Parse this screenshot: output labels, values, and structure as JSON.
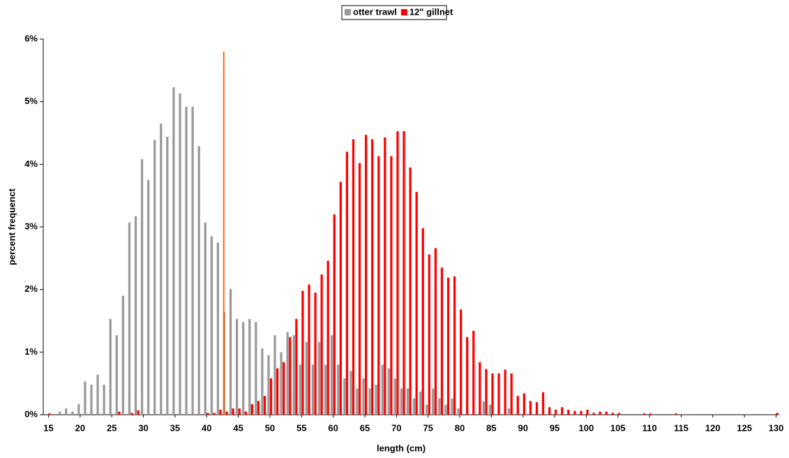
{
  "chart_data": {
    "type": "bar",
    "x_label": "length (cm)",
    "y_label": "percent frequenct",
    "x": [
      15,
      16,
      17,
      18,
      19,
      20,
      21,
      22,
      23,
      24,
      25,
      26,
      27,
      28,
      29,
      30,
      31,
      32,
      33,
      34,
      35,
      36,
      37,
      38,
      39,
      40,
      41,
      42,
      43,
      44,
      45,
      46,
      47,
      48,
      49,
      50,
      51,
      52,
      53,
      54,
      55,
      56,
      57,
      58,
      59,
      60,
      61,
      62,
      63,
      64,
      65,
      66,
      67,
      68,
      69,
      70,
      71,
      72,
      73,
      74,
      75,
      76,
      77,
      78,
      79,
      80,
      81,
      82,
      83,
      84,
      85,
      86,
      87,
      88,
      89,
      90,
      91,
      92,
      93,
      94,
      95,
      96,
      97,
      98,
      99,
      100,
      101,
      102,
      103,
      104,
      105,
      106,
      107,
      108,
      109,
      110,
      111,
      112,
      113,
      114,
      115,
      116,
      117,
      118,
      119,
      120,
      121,
      122,
      123,
      124,
      125,
      126,
      127,
      128,
      129,
      130
    ],
    "xlim": [
      14.5,
      130.5
    ],
    "xticks": [
      15,
      20,
      25,
      30,
      35,
      40,
      45,
      50,
      55,
      60,
      65,
      70,
      75,
      80,
      85,
      90,
      95,
      100,
      105,
      110,
      115,
      120,
      125,
      130
    ],
    "ylim": [
      0,
      6
    ],
    "yticks": [
      {
        "value": 0,
        "label": "0%"
      },
      {
        "value": 1,
        "label": "1%"
      },
      {
        "value": 2,
        "label": "2%"
      },
      {
        "value": 3,
        "label": "3%"
      },
      {
        "value": 4,
        "label": "4%"
      },
      {
        "value": 5,
        "label": "5%"
      },
      {
        "value": 6,
        "label": "6%"
      }
    ],
    "grid": false,
    "legend": "top",
    "series": [
      {
        "name": "otter trawl",
        "color": "#999999",
        "values": [
          0,
          0,
          0.05,
          0.1,
          0.05,
          0.17,
          0.53,
          0.48,
          0.64,
          0.48,
          1.53,
          1.27,
          1.9,
          3.07,
          3.17,
          4.08,
          3.75,
          4.39,
          4.65,
          4.44,
          5.23,
          5.13,
          4.92,
          4.92,
          4.29,
          3.07,
          2.85,
          2.75,
          1.64,
          2.01,
          1.53,
          1.48,
          1.53,
          1.48,
          1.06,
          0.95,
          1.27,
          1.0,
          1.32,
          1.27,
          0.8,
          1.16,
          0.8,
          1.16,
          0.8,
          1.27,
          0.8,
          0.58,
          0.7,
          0.42,
          0.58,
          0.42,
          0.48,
          0.8,
          0.74,
          0.58,
          0.42,
          0.42,
          0.26,
          0.37,
          0.16,
          0.42,
          0.26,
          0.16,
          0.26,
          0.1,
          0,
          0,
          0,
          0.21,
          0.16,
          0,
          0,
          0.1,
          0,
          0,
          0,
          0,
          0,
          0,
          0,
          0,
          0,
          0,
          0,
          0,
          0,
          0,
          0,
          0,
          0,
          0,
          0,
          0,
          0,
          0,
          0,
          0,
          0,
          0,
          0,
          0,
          0,
          0,
          0,
          0,
          0,
          0,
          0,
          0,
          0,
          0,
          0,
          0,
          0,
          0
        ]
      },
      {
        "name": "12\" gillnet",
        "color": "#ff0000",
        "values": [
          0.02,
          0,
          0,
          0,
          0,
          0,
          0,
          0,
          0,
          0,
          0,
          0.05,
          0,
          0.03,
          0.07,
          0,
          0,
          0,
          0,
          0,
          0,
          0,
          0,
          0,
          0,
          0.03,
          0.03,
          0.08,
          0.05,
          0.1,
          0.1,
          0.05,
          0.17,
          0.22,
          0.3,
          0.58,
          0.74,
          0.84,
          1.24,
          1.53,
          1.98,
          2.08,
          1.95,
          2.24,
          2.46,
          3.2,
          3.72,
          4.2,
          4.4,
          4.02,
          4.47,
          4.4,
          4.13,
          4.43,
          4.13,
          4.53,
          4.53,
          3.95,
          3.56,
          2.98,
          2.56,
          2.66,
          2.35,
          2.19,
          2.21,
          1.68,
          1.24,
          1.34,
          0.84,
          0.73,
          0.66,
          0.66,
          0.72,
          0.66,
          0.3,
          0.34,
          0.22,
          0.2,
          0.36,
          0.12,
          0.08,
          0.12,
          0.08,
          0.06,
          0.06,
          0.08,
          0.03,
          0.05,
          0.05,
          0.03,
          0.03,
          0,
          0,
          0,
          0.02,
          0.02,
          0,
          0,
          0,
          0.02,
          0,
          0,
          0,
          0,
          0,
          0,
          0,
          0,
          0,
          0,
          0,
          0,
          0,
          0,
          0,
          0.03
        ]
      }
    ],
    "reference_line": {
      "x": 42.7,
      "top": 5.8,
      "color": "#ff6600"
    }
  }
}
